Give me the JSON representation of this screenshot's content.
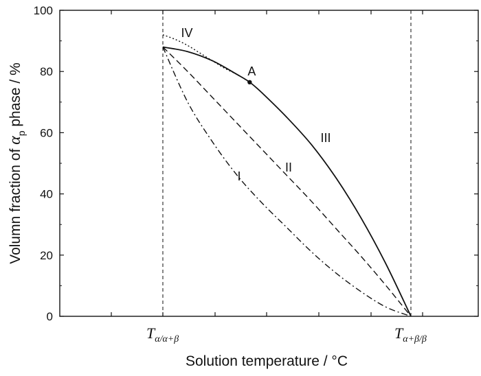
{
  "chart_data": {
    "type": "line",
    "xlabel": "Solution temperature / °C",
    "ylabel_parts": {
      "before": "Volumn fraction of ",
      "symbol": "α",
      "symbol_subscript": "p",
      "after": " phase / %"
    },
    "ylim": [
      0,
      100
    ],
    "yticks": [
      "0",
      "20",
      "40",
      "60",
      "80",
      "100"
    ],
    "x_reference_lines": [
      {
        "main": "T",
        "subscript": "α/α+β",
        "x_relative": 0.0,
        "style": "dashed"
      },
      {
        "main": "T",
        "subscript": "α+β/β",
        "x_relative": 1.0,
        "style": "dashed"
      }
    ],
    "x_normalized_between_reference_lines": true,
    "grid": false,
    "legend": "none",
    "series": [
      {
        "name": "I",
        "style": "dash-dot",
        "x": [
          0.0,
          0.1,
          0.2,
          0.3,
          0.4,
          0.5,
          0.6,
          0.7,
          0.8,
          0.9,
          1.0
        ],
        "y": [
          88,
          70,
          57,
          46,
          37,
          29,
          21,
          14,
          8,
          3,
          0
        ]
      },
      {
        "name": "II",
        "style": "dashed",
        "x": [
          0.0,
          0.1,
          0.2,
          0.3,
          0.4,
          0.5,
          0.6,
          0.7,
          0.8,
          0.9,
          1.0
        ],
        "y": [
          88,
          80,
          71.5,
          63,
          54.5,
          46,
          37.5,
          28.5,
          19.5,
          10,
          0
        ]
      },
      {
        "name": "III",
        "style": "solid",
        "x": [
          0.0,
          0.1,
          0.2,
          0.3,
          0.35,
          0.4,
          0.5,
          0.6,
          0.7,
          0.8,
          0.9,
          1.0
        ],
        "y": [
          88,
          86.5,
          83.5,
          79,
          76.5,
          73,
          65,
          56,
          45,
          32,
          17,
          0
        ]
      },
      {
        "name": "IV",
        "style": "dotted",
        "x": [
          0.0,
          0.05,
          0.1,
          0.15,
          0.2,
          0.25,
          0.3,
          0.35
        ],
        "y": [
          92,
          90.5,
          88.5,
          86,
          83.5,
          81,
          79,
          76.5
        ]
      }
    ],
    "annotations": [
      {
        "text": "A",
        "x": 0.35,
        "y": 76.5,
        "marker": "point"
      }
    ]
  }
}
